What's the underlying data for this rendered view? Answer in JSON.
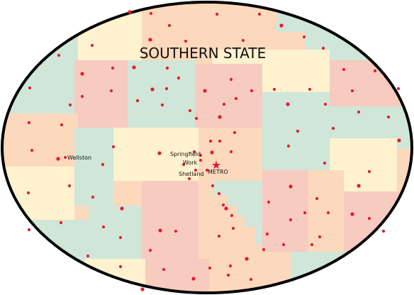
{
  "map": {
    "title": "SOUTHERN STATE",
    "colors": {
      "peach": "#fcd9bd",
      "cream": "#fff2cf",
      "mint": "#cfe6d8",
      "pink": "#f8cbc0",
      "border": "#000000",
      "dot": "#e8192c"
    },
    "labeled_places": [
      {
        "name": "Wellston",
        "symbol": "dot"
      },
      {
        "name": "Springfield",
        "symbol": "dot"
      },
      {
        "name": "Work",
        "symbol": "dot"
      },
      {
        "name": "METRO",
        "symbol": "star"
      },
      {
        "name": "Shetland",
        "symbol": "dot"
      }
    ]
  }
}
